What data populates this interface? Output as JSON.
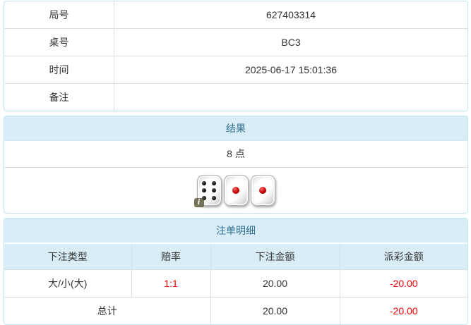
{
  "info_table": {
    "rows": [
      {
        "label": "局号",
        "value": "627403314"
      },
      {
        "label": "桌号",
        "value": "BC3"
      },
      {
        "label": "时间",
        "value": "2025-06-17 15:01:36"
      },
      {
        "label": "备注",
        "value": ""
      }
    ]
  },
  "result_panel": {
    "title": "结果",
    "points": "8 点",
    "dice": [
      6,
      1,
      1
    ],
    "info_badge": "i"
  },
  "bet_panel": {
    "title": "注单明细",
    "columns": [
      "下注类型",
      "赔率",
      "下注金额",
      "派彩金额"
    ],
    "rows": [
      {
        "type": "大/小(大)",
        "odds": "1:1",
        "amount": "20.00",
        "payout": "-20.00"
      }
    ],
    "total": {
      "label": "总计",
      "amount": "20.00",
      "payout": "-20.00"
    }
  },
  "colors": {
    "panel_border": "#bce8f1",
    "heading_bg": "#d9edf7",
    "heading_text": "#31708f",
    "grid_border": "#dddddd",
    "text": "#333333",
    "negative_text": "#ff0000",
    "pip_black": "#000000",
    "pip_red": "#c40000"
  }
}
